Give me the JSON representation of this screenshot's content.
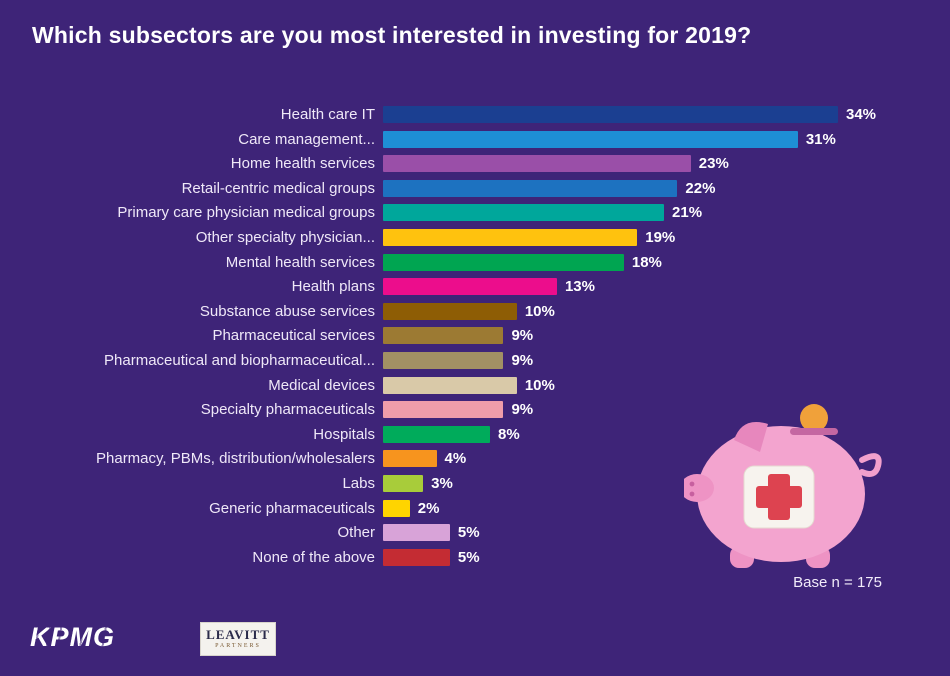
{
  "title": "Which subsectors are you most interested in investing for 2019?",
  "base_note": "Base n = 175",
  "logos": {
    "kpmg": "KPMG",
    "leavitt_line1": "LEAVITT",
    "leavitt_line2": "PARTNERS"
  },
  "colors": {
    "background": "#3e2478",
    "title_text": "#ffffff",
    "label_text": "#efe8f8",
    "value_text": "#ffffff"
  },
  "chart_data": {
    "type": "bar",
    "orientation": "horizontal",
    "title": "Which subsectors are you most interested in investing for 2019?",
    "value_suffix": "%",
    "xlim": [
      0,
      34
    ],
    "legend": "none",
    "grid": false,
    "categories": [
      "Health care IT",
      "Care management...",
      "Home health services",
      "Retail-centric medical groups",
      "Primary care physician medical groups",
      "Other specialty physician...",
      "Mental health services",
      "Health plans",
      "Substance abuse services",
      "Pharmaceutical services",
      "Pharmaceutical and biopharmaceutical...",
      "Medical devices",
      "Specialty pharmaceuticals",
      "Hospitals",
      "Pharmacy, PBMs, distribution/wholesalers",
      "Labs",
      "Generic pharmaceuticals",
      "Other",
      "None of the above"
    ],
    "values": [
      34,
      31,
      23,
      22,
      21,
      19,
      18,
      13,
      10,
      9,
      9,
      10,
      9,
      8,
      4,
      3,
      2,
      5,
      5
    ],
    "value_labels": [
      "34%",
      "31%",
      "23%",
      "22%",
      "21%",
      "19%",
      "18%",
      "13%",
      "10%",
      "9%",
      "9%",
      "10%",
      "9%",
      "8%",
      "4%",
      "3%",
      "2%",
      "5%",
      "5%"
    ],
    "bar_colors": [
      "#1b3f91",
      "#1e8fd5",
      "#9a4fa8",
      "#1d72c0",
      "#00a79b",
      "#ffc20e",
      "#00a551",
      "#ec0d8c",
      "#8e5d05",
      "#9c7a33",
      "#a29064",
      "#d9c9a8",
      "#ef9daa",
      "#00ab5b",
      "#f7941e",
      "#a8cc3a",
      "#ffd400",
      "#d8a3d8",
      "#c42c33"
    ],
    "base_note": "Base n = 175"
  }
}
